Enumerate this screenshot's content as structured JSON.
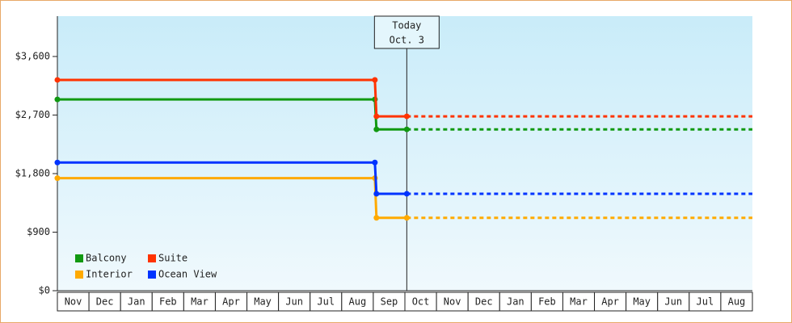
{
  "chart_data": {
    "type": "line",
    "step": true,
    "categories": [
      "Nov",
      "Dec",
      "Jan",
      "Feb",
      "Mar",
      "Apr",
      "May",
      "Jun",
      "Jul",
      "Aug",
      "Sep",
      "Oct",
      "Nov",
      "Dec",
      "Jan",
      "Feb",
      "Mar",
      "Apr",
      "May",
      "Jun",
      "Jul",
      "Aug"
    ],
    "xlim": [
      0,
      22
    ],
    "ylim": [
      0,
      4220
    ],
    "yticks": [
      {
        "value": 0,
        "label": "$0"
      },
      {
        "value": 900,
        "label": "$900"
      },
      {
        "value": 1800,
        "label": "$1,800"
      },
      {
        "value": 2700,
        "label": "$2,700"
      },
      {
        "value": 3600,
        "label": "$3,600"
      }
    ],
    "grid": false,
    "extend_dashed": true,
    "legend": "bottom-left",
    "annotation": {
      "x": 11.06,
      "lines": [
        "Today",
        "Oct. 3"
      ]
    },
    "series": [
      {
        "name": "Balcony",
        "color": "#119911",
        "x": [
          0,
          10.05,
          10.1,
          11.06
        ],
        "values": [
          2940,
          2940,
          2480,
          2480
        ]
      },
      {
        "name": "Suite",
        "color": "#ff3300",
        "x": [
          0,
          10.05,
          10.1,
          11.06
        ],
        "values": [
          3240,
          3240,
          2680,
          2680
        ]
      },
      {
        "name": "Interior",
        "color": "#ffaa00",
        "x": [
          0,
          10.05,
          10.1,
          11.06
        ],
        "values": [
          1730,
          1730,
          1120,
          1120
        ]
      },
      {
        "name": "Ocean View",
        "color": "#0033ff",
        "x": [
          0,
          10.05,
          10.1,
          11.06
        ],
        "values": [
          1970,
          1970,
          1490,
          1490
        ]
      }
    ]
  }
}
